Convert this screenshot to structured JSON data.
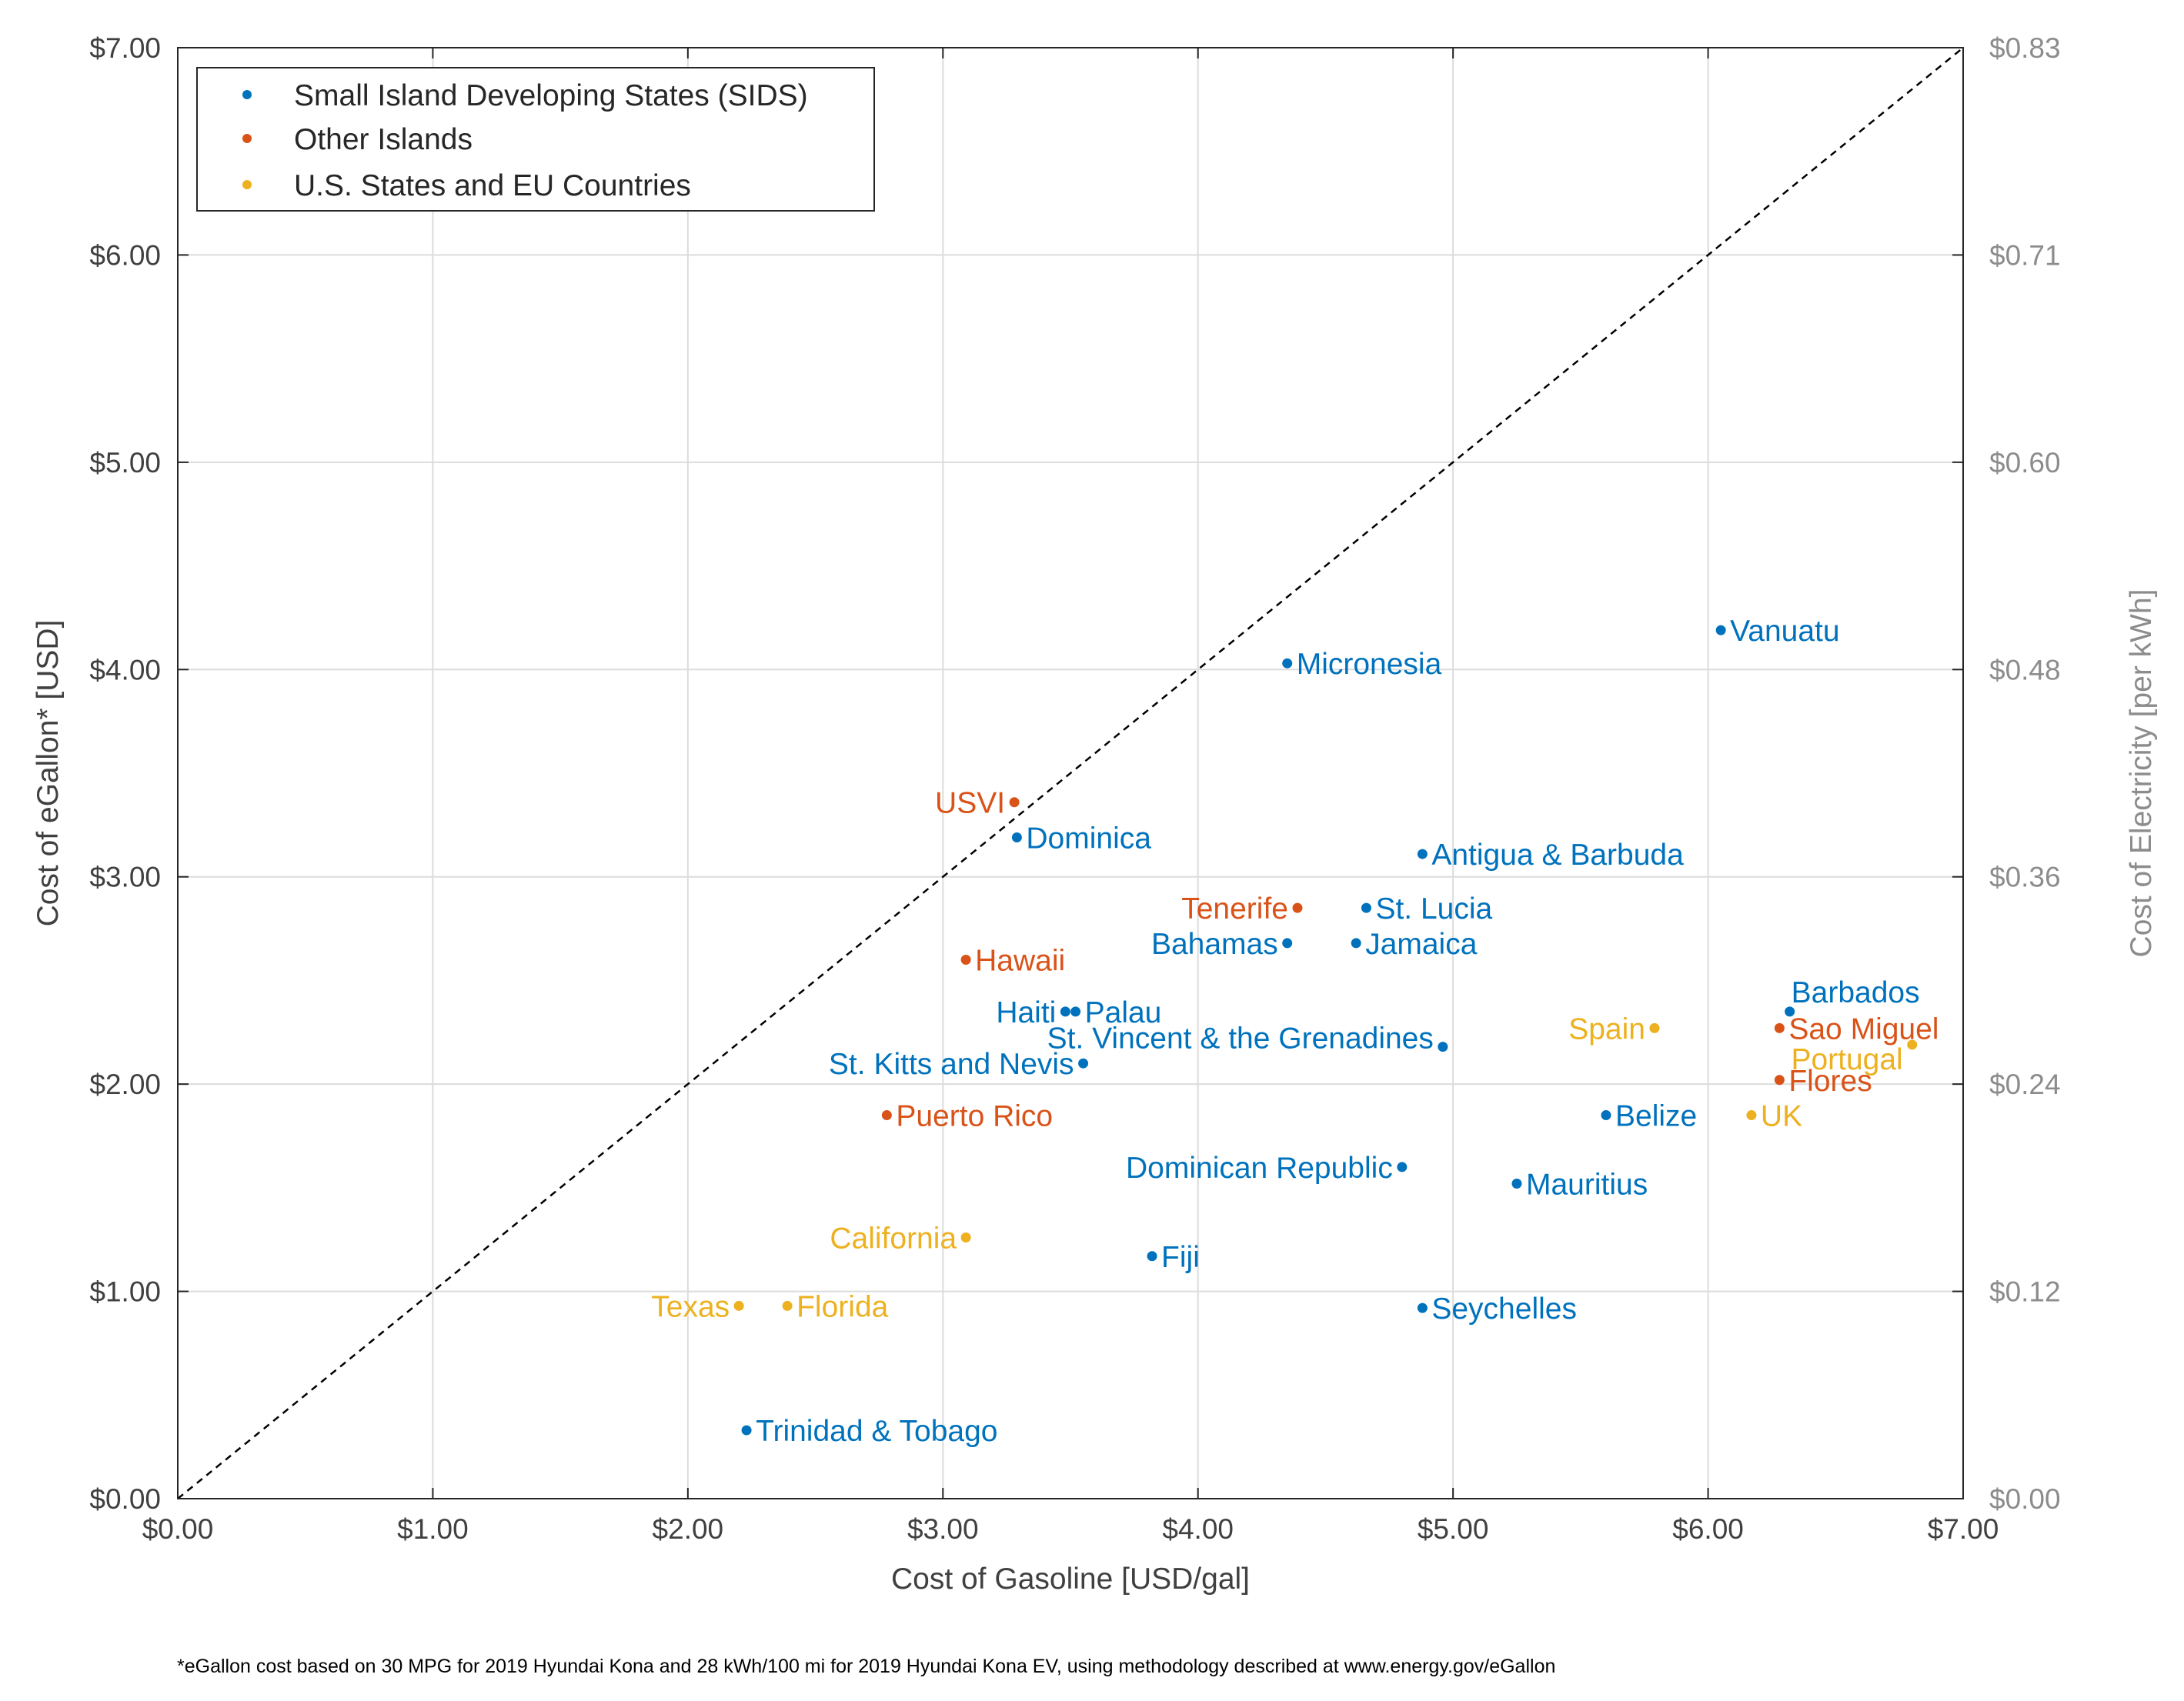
{
  "chart_data": {
    "type": "scatter",
    "title": "",
    "xlabel": "Cost of Gasoline [USD/gal]",
    "ylabel": "Cost of eGallon* [USD]",
    "y2label": "Cost of Electricity [per kWh]",
    "xlim": [
      0,
      7
    ],
    "ylim": [
      0,
      7
    ],
    "grid": true,
    "legend_position": "top-left",
    "x_ticks": [
      "$0.00",
      "$1.00",
      "$2.00",
      "$3.00",
      "$4.00",
      "$5.00",
      "$6.00",
      "$7.00"
    ],
    "y_ticks": [
      "$0.00",
      "$1.00",
      "$2.00",
      "$3.00",
      "$4.00",
      "$5.00",
      "$6.00",
      "$7.00"
    ],
    "y2_ticks": [
      "$0.00",
      "$0.12",
      "$0.24",
      "$0.36",
      "$0.48",
      "$0.60",
      "$0.71",
      "$0.83"
    ],
    "reference_line": {
      "style": "dashed",
      "color": "#000000",
      "from": [
        0,
        0
      ],
      "to": [
        7,
        7
      ]
    },
    "footnote": "*eGallon cost based on 30 MPG for 2019 Hyundai Kona and 28 kWh/100 mi for 2019 Hyundai Kona EV, using methodology described at www.energy.gov/eGallon",
    "series": [
      {
        "name": "Small Island Developing States (SIDS)",
        "color": "#0072BD",
        "points": [
          {
            "label": "Vanuatu",
            "x": 6.05,
            "y": 4.19,
            "side": "right"
          },
          {
            "label": "Micronesia",
            "x": 4.35,
            "y": 4.03,
            "side": "right"
          },
          {
            "label": "Dominica",
            "x": 3.29,
            "y": 3.19,
            "side": "right"
          },
          {
            "label": "Antigua & Barbuda",
            "x": 4.88,
            "y": 3.11,
            "side": "right"
          },
          {
            "label": "St. Lucia",
            "x": 4.66,
            "y": 2.85,
            "side": "right"
          },
          {
            "label": "Bahamas",
            "x": 4.35,
            "y": 2.68,
            "side": "left"
          },
          {
            "label": "Jamaica",
            "x": 4.62,
            "y": 2.68,
            "side": "right"
          },
          {
            "label": "Barbados",
            "x": 6.32,
            "y": 2.35,
            "side": "right-above"
          },
          {
            "label": "Haiti",
            "x": 3.48,
            "y": 2.35,
            "side": "left"
          },
          {
            "label": "Palau",
            "x": 3.52,
            "y": 2.35,
            "side": "right"
          },
          {
            "label": "St. Vincent & the Grenadines",
            "x": 4.96,
            "y": 2.18,
            "side": "left-above"
          },
          {
            "label": "St. Kitts and Nevis",
            "x": 3.55,
            "y": 2.1,
            "side": "left"
          },
          {
            "label": "Belize",
            "x": 5.6,
            "y": 1.85,
            "side": "right"
          },
          {
            "label": "Dominican Republic",
            "x": 4.8,
            "y": 1.6,
            "side": "left"
          },
          {
            "label": "Mauritius",
            "x": 5.25,
            "y": 1.52,
            "side": "right"
          },
          {
            "label": "Fiji",
            "x": 3.82,
            "y": 1.17,
            "side": "right"
          },
          {
            "label": "Seychelles",
            "x": 4.88,
            "y": 0.92,
            "side": "right"
          },
          {
            "label": "Trinidad & Tobago",
            "x": 2.23,
            "y": 0.33,
            "side": "right"
          }
        ]
      },
      {
        "name": "Other Islands",
        "color": "#D95319",
        "points": [
          {
            "label": "USVI",
            "x": 3.28,
            "y": 3.36,
            "side": "left"
          },
          {
            "label": "Tenerife",
            "x": 4.39,
            "y": 2.85,
            "side": "left"
          },
          {
            "label": "Hawaii",
            "x": 3.09,
            "y": 2.6,
            "side": "right"
          },
          {
            "label": "Sao Miguel",
            "x": 6.28,
            "y": 2.27,
            "side": "right"
          },
          {
            "label": "Flores",
            "x": 6.28,
            "y": 2.02,
            "side": "right"
          },
          {
            "label": "Puerto Rico",
            "x": 2.78,
            "y": 1.85,
            "side": "right"
          }
        ]
      },
      {
        "name": "U.S. States and EU Countries",
        "color": "#EDB120",
        "points": [
          {
            "label": "Spain",
            "x": 5.79,
            "y": 2.27,
            "side": "left"
          },
          {
            "label": "Portugal",
            "x": 6.8,
            "y": 2.19,
            "side": "left-below"
          },
          {
            "label": "UK",
            "x": 6.17,
            "y": 1.85,
            "side": "right"
          },
          {
            "label": "California",
            "x": 3.09,
            "y": 1.26,
            "side": "left"
          },
          {
            "label": "Texas",
            "x": 2.2,
            "y": 0.93,
            "side": "left"
          },
          {
            "label": "Florida",
            "x": 2.39,
            "y": 0.93,
            "side": "right"
          }
        ]
      }
    ]
  }
}
